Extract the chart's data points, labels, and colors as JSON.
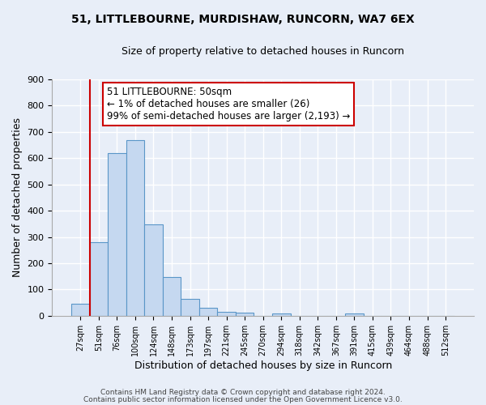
{
  "title": "51, LITTLEBOURNE, MURDISHAW, RUNCORN, WA7 6EX",
  "subtitle": "Size of property relative to detached houses in Runcorn",
  "xlabel": "Distribution of detached houses by size in Runcorn",
  "ylabel": "Number of detached properties",
  "bin_labels": [
    "27sqm",
    "51sqm",
    "76sqm",
    "100sqm",
    "124sqm",
    "148sqm",
    "173sqm",
    "197sqm",
    "221sqm",
    "245sqm",
    "270sqm",
    "294sqm",
    "318sqm",
    "342sqm",
    "367sqm",
    "391sqm",
    "415sqm",
    "439sqm",
    "464sqm",
    "488sqm",
    "512sqm"
  ],
  "bar_values": [
    45,
    280,
    620,
    670,
    348,
    148,
    65,
    30,
    14,
    11,
    0,
    8,
    0,
    0,
    0,
    8,
    0,
    0,
    0,
    0,
    0
  ],
  "bar_color": "#c5d8f0",
  "bar_edge_color": "#5a96c8",
  "marker_color": "#cc0000",
  "annotation_title": "51 LITTLEBOURNE: 50sqm",
  "annotation_line1": "← 1% of detached houses are smaller (26)",
  "annotation_line2": "99% of semi-detached houses are larger (2,193) →",
  "annotation_box_color": "#cc0000",
  "ylim": [
    0,
    900
  ],
  "yticks": [
    0,
    100,
    200,
    300,
    400,
    500,
    600,
    700,
    800,
    900
  ],
  "footer1": "Contains HM Land Registry data © Crown copyright and database right 2024.",
  "footer2": "Contains public sector information licensed under the Open Government Licence v3.0.",
  "bg_color": "#e8eef8",
  "grid_color": "#ffffff"
}
